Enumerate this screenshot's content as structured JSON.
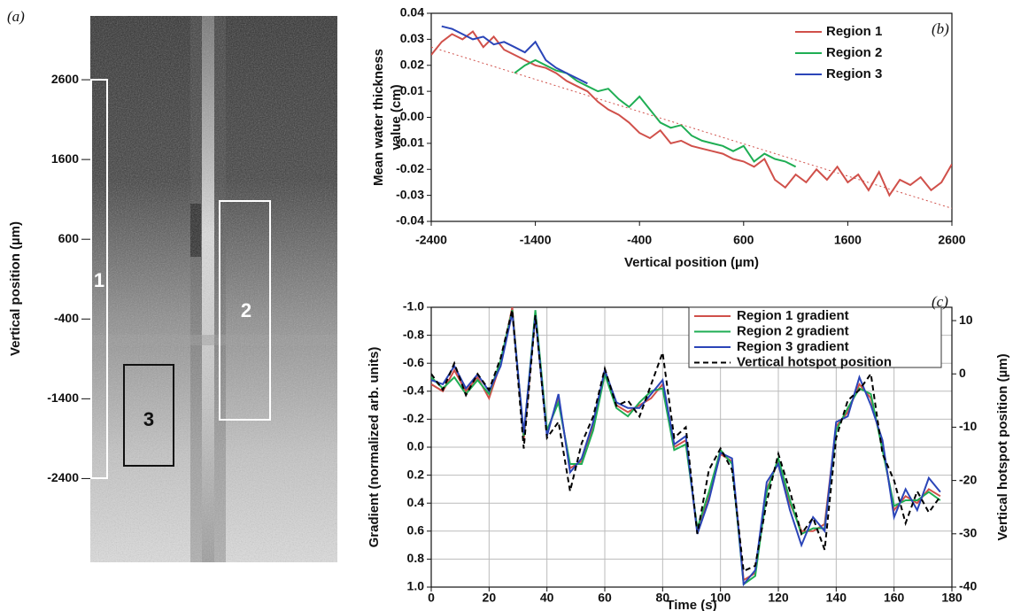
{
  "chart_data": [
    {
      "type": "image",
      "panel_label": "(a)",
      "ylabel": "Vertical position (µm)",
      "ylim": [
        -3450,
        3400
      ],
      "yticks": [
        2600,
        1600,
        600,
        -400,
        -1400,
        -2400
      ],
      "region_labels": [
        "1",
        "2",
        "3"
      ]
    },
    {
      "type": "line",
      "panel_label": "(b)",
      "xlabel": "Vertical position (µm)",
      "ylabel": [
        "Mean water thickness",
        "value (cm)"
      ],
      "xlim": [
        -2400,
        2600
      ],
      "xticks": [
        -2400,
        -1400,
        -400,
        600,
        1600,
        2600
      ],
      "ylim": [
        -0.04,
        0.04
      ],
      "yticks": [
        -0.04,
        -0.03,
        -0.02,
        -0.01,
        {
          "value": 0,
          "label": "0.00"
        },
        0.01,
        0.02,
        0.03,
        0.04
      ],
      "grid": false,
      "legend": "upper right",
      "series": [
        {
          "name": "Region 1",
          "color": "#d0504a",
          "x": [
            -2400,
            -2300,
            -2200,
            -2100,
            -2000,
            -1900,
            -1800,
            -1700,
            -1600,
            -1500,
            -1400,
            -1300,
            -1200,
            -1100,
            -1000,
            -900,
            -800,
            -700,
            -600,
            -500,
            -400,
            -300,
            -200,
            -100,
            0,
            100,
            200,
            300,
            400,
            500,
            600,
            700,
            800,
            900,
            1000,
            1100,
            1200,
            1300,
            1400,
            1500,
            1600,
            1700,
            1800,
            1900,
            2000,
            2100,
            2200,
            2300,
            2400,
            2500,
            2600
          ],
          "values": [
            0.024,
            0.029,
            0.032,
            0.03,
            0.033,
            0.027,
            0.031,
            0.026,
            0.024,
            0.022,
            0.02,
            0.019,
            0.017,
            0.014,
            0.012,
            0.01,
            0.006,
            0.003,
            0.001,
            -0.002,
            -0.006,
            -0.008,
            -0.005,
            -0.01,
            -0.009,
            -0.011,
            -0.012,
            -0.013,
            -0.014,
            -0.016,
            -0.017,
            -0.019,
            -0.016,
            -0.024,
            -0.027,
            -0.022,
            -0.025,
            -0.02,
            -0.024,
            -0.019,
            -0.025,
            -0.022,
            -0.028,
            -0.021,
            -0.03,
            -0.024,
            -0.026,
            -0.023,
            -0.028,
            -0.025,
            -0.018
          ]
        },
        {
          "name": "Region 2",
          "color": "#1fae54",
          "x": [
            -1600,
            -1500,
            -1400,
            -1300,
            -1200,
            -1100,
            -1000,
            -900,
            -800,
            -700,
            -600,
            -500,
            -400,
            -300,
            -200,
            -100,
            0,
            100,
            200,
            300,
            400,
            500,
            600,
            700,
            800,
            900,
            1000,
            1100
          ],
          "values": [
            0.017,
            0.02,
            0.022,
            0.02,
            0.018,
            0.017,
            0.014,
            0.012,
            0.01,
            0.011,
            0.007,
            0.004,
            0.008,
            0.003,
            -0.002,
            -0.004,
            -0.003,
            -0.007,
            -0.009,
            -0.01,
            -0.011,
            -0.013,
            -0.011,
            -0.017,
            -0.014,
            -0.016,
            -0.017,
            -0.019
          ]
        },
        {
          "name": "Region 3",
          "color": "#2b45b8",
          "x": [
            -2300,
            -2200,
            -2100,
            -2000,
            -1900,
            -1800,
            -1700,
            -1600,
            -1500,
            -1400,
            -1300,
            -1200,
            -1100,
            -1000,
            -900
          ],
          "values": [
            0.035,
            0.034,
            0.032,
            0.03,
            0.031,
            0.028,
            0.029,
            0.027,
            0.025,
            0.029,
            0.022,
            0.019,
            0.017,
            0.015,
            0.013
          ]
        },
        {
          "color": "#d0504a",
          "dash": "dotted",
          "x": [
            -2400,
            2600
          ],
          "values": [
            0.027,
            -0.035
          ]
        }
      ]
    },
    {
      "type": "line",
      "panel_label": "(c)",
      "xlabel": "Time (s)",
      "ylabel": "Gradient (normalized arb. units)",
      "y2label": "Vertical hotspot position (µm)",
      "xlim": [
        0,
        180
      ],
      "xticks": [
        0,
        20,
        40,
        60,
        80,
        100,
        120,
        140,
        160,
        180
      ],
      "ylim": [
        -1,
        1
      ],
      "y_inverted": true,
      "yticks": [
        {
          "value": -1,
          "label": "-1.0"
        },
        -0.8,
        -0.6,
        -0.4,
        -0.2,
        {
          "value": 0,
          "label": "0.0"
        },
        0.2,
        0.4,
        0.6,
        0.8,
        {
          "value": 1,
          "label": "1.0"
        }
      ],
      "y2lim": [
        -40,
        12.5
      ],
      "y2ticks": [
        10,
        0,
        -10,
        -20,
        -30,
        -40
      ],
      "grid": true,
      "legend": "upper right",
      "x": [
        0,
        4,
        8,
        12,
        16,
        20,
        24,
        28,
        32,
        36,
        40,
        44,
        48,
        52,
        56,
        60,
        64,
        68,
        72,
        76,
        80,
        84,
        88,
        92,
        96,
        100,
        104,
        108,
        112,
        116,
        120,
        124,
        128,
        132,
        136,
        140,
        144,
        148,
        152,
        156,
        160,
        164,
        168,
        172,
        176
      ],
      "series": [
        {
          "name": "Region 1 gradient",
          "color": "#d0504a",
          "values": [
            -0.45,
            -0.4,
            -0.55,
            -0.4,
            -0.5,
            -0.35,
            -0.6,
            -1.0,
            -0.05,
            -0.95,
            -0.1,
            -0.35,
            0.15,
            0.1,
            -0.15,
            -0.55,
            -0.3,
            -0.25,
            -0.3,
            -0.35,
            -0.45,
            0.0,
            -0.05,
            0.6,
            0.35,
            0.05,
            0.1,
            0.95,
            0.9,
            0.3,
            0.1,
            0.4,
            0.6,
            0.6,
            0.55,
            -0.15,
            -0.25,
            -0.45,
            -0.35,
            0.0,
            0.45,
            0.35,
            0.4,
            0.3,
            0.35
          ]
        },
        {
          "name": "Region 2 gradient",
          "color": "#1fae54",
          "values": [
            -0.5,
            -0.42,
            -0.5,
            -0.38,
            -0.48,
            -0.38,
            -0.62,
            -0.98,
            -0.08,
            -0.98,
            -0.12,
            -0.32,
            0.12,
            0.12,
            -0.12,
            -0.52,
            -0.28,
            -0.22,
            -0.32,
            -0.4,
            -0.42,
            0.02,
            -0.02,
            0.58,
            0.32,
            0.02,
            0.12,
            0.98,
            0.92,
            0.32,
            0.08,
            0.38,
            0.62,
            0.58,
            0.58,
            -0.12,
            -0.28,
            -0.42,
            -0.38,
            0.02,
            0.42,
            0.38,
            0.38,
            0.32,
            0.38
          ]
        },
        {
          "name": "Region 3 gradient",
          "color": "#2b45b8",
          "values": [
            -0.48,
            -0.45,
            -0.58,
            -0.42,
            -0.52,
            -0.4,
            -0.58,
            -0.96,
            -0.1,
            -0.94,
            -0.08,
            -0.38,
            0.18,
            0.08,
            -0.18,
            -0.55,
            -0.32,
            -0.28,
            -0.28,
            -0.38,
            -0.48,
            -0.02,
            -0.08,
            0.62,
            0.38,
            0.04,
            0.08,
            0.98,
            0.88,
            0.25,
            0.12,
            0.45,
            0.7,
            0.5,
            0.6,
            -0.18,
            -0.22,
            -0.5,
            -0.3,
            -0.05,
            0.5,
            0.3,
            0.45,
            0.22,
            0.32
          ]
        },
        {
          "name": "Vertical hotspot position",
          "color": "#000000",
          "dash": "dashed",
          "axis": "y2",
          "values": [
            0,
            -3,
            2,
            -4,
            0,
            -3,
            3,
            12,
            -14,
            11,
            -12,
            -9,
            -22,
            -13,
            -8,
            1,
            -6,
            -5,
            -8,
            -2,
            4,
            -12,
            -10,
            -30,
            -18,
            -14,
            -18,
            -37,
            -36,
            -24,
            -15,
            -22,
            -30,
            -27,
            -33,
            -12,
            -5,
            -3,
            0,
            -15,
            -20,
            -28,
            -22,
            -26,
            -23
          ]
        }
      ]
    }
  ]
}
